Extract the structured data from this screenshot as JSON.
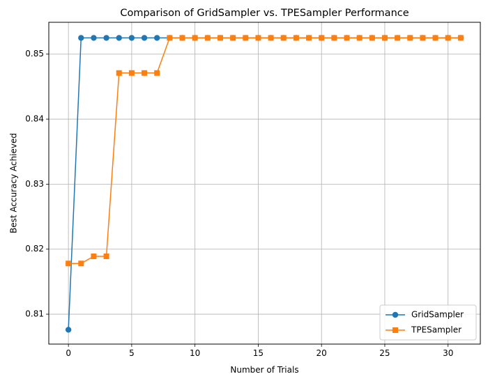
{
  "chart_data": {
    "type": "line",
    "title": "Comparison of GridSampler vs. TPESampler Performance",
    "xlabel": "Number of Trials",
    "ylabel": "Best Accuracy Achieved",
    "xlim": [
      -1.55,
      32.55
    ],
    "ylim": [
      0.8054,
      0.8549
    ],
    "xticks": [
      0,
      5,
      10,
      15,
      20,
      25,
      30
    ],
    "yticks": [
      0.81,
      0.82,
      0.83,
      0.84,
      0.85
    ],
    "grid": true,
    "legend_position": "lower-right",
    "series": [
      {
        "name": "GridSampler",
        "color": "#1f77b4",
        "marker": "circle",
        "x": [
          0,
          1,
          2,
          3,
          4,
          5,
          6,
          7,
          8,
          9,
          10,
          11,
          12,
          13,
          14,
          15,
          16,
          17,
          18,
          19,
          20,
          21,
          22,
          23,
          24,
          25,
          26,
          27,
          28,
          29,
          30,
          31
        ],
        "y": [
          0.8076,
          0.8525,
          0.8525,
          0.8525,
          0.8525,
          0.8525,
          0.8525,
          0.8525,
          0.8525,
          0.8525,
          0.8525,
          0.8525,
          0.8525,
          0.8525,
          0.8525,
          0.8525,
          0.8525,
          0.8525,
          0.8525,
          0.8525,
          0.8525,
          0.8525,
          0.8525,
          0.8525,
          0.8525,
          0.8525,
          0.8525,
          0.8525,
          0.8525,
          0.8525,
          0.8525,
          0.8525
        ]
      },
      {
        "name": "TPESampler",
        "color": "#ff7f0e",
        "marker": "square",
        "x": [
          0,
          1,
          2,
          3,
          4,
          5,
          6,
          7,
          8,
          9,
          10,
          11,
          12,
          13,
          14,
          15,
          16,
          17,
          18,
          19,
          20,
          21,
          22,
          23,
          24,
          25,
          26,
          27,
          28,
          29,
          30,
          31
        ],
        "y": [
          0.8178,
          0.8178,
          0.8189,
          0.8189,
          0.8471,
          0.8471,
          0.8471,
          0.8471,
          0.8525,
          0.8525,
          0.8525,
          0.8525,
          0.8525,
          0.8525,
          0.8525,
          0.8525,
          0.8525,
          0.8525,
          0.8525,
          0.8525,
          0.8525,
          0.8525,
          0.8525,
          0.8525,
          0.8525,
          0.8525,
          0.8525,
          0.8525,
          0.8525,
          0.8525,
          0.8525,
          0.8525
        ]
      }
    ]
  }
}
